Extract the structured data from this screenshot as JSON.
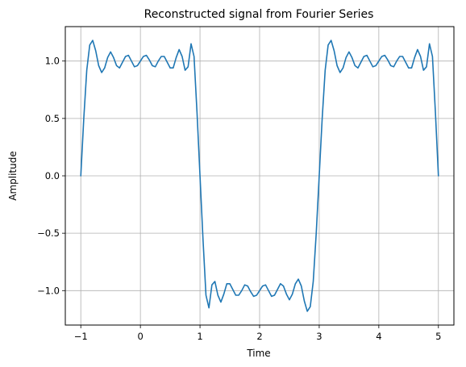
{
  "chart_data": {
    "type": "line",
    "title": "Reconstructed signal from Fourier Series",
    "xlabel": "Time",
    "ylabel": "Amplitude",
    "xlim": [
      -1.26,
      5.26
    ],
    "ylim": [
      -1.3,
      1.3
    ],
    "xticks": [
      -1,
      0,
      1,
      2,
      3,
      4,
      5
    ],
    "xtick_labels": [
      "−1",
      "0",
      "1",
      "2",
      "3",
      "4",
      "5"
    ],
    "yticks": [
      -1.0,
      -0.5,
      0.0,
      0.5,
      1.0
    ],
    "ytick_labels": [
      "−1.0",
      "−0.5",
      "0.0",
      "0.5",
      "1.0"
    ],
    "grid": true,
    "legend": "none",
    "series": [
      {
        "color": "#1f77b4",
        "x": [
          -1.0,
          -0.95,
          -0.9,
          -0.85,
          -0.8,
          -0.75,
          -0.7,
          -0.65,
          -0.6,
          -0.55,
          -0.5,
          -0.45,
          -0.4,
          -0.35,
          -0.3,
          -0.25,
          -0.2,
          -0.15,
          -0.1,
          -0.05,
          0.0,
          0.05,
          0.1,
          0.15,
          0.2,
          0.25,
          0.3,
          0.35,
          0.4,
          0.45,
          0.5,
          0.55,
          0.6,
          0.65,
          0.7,
          0.75,
          0.8,
          0.85,
          0.9,
          0.95,
          1.0,
          1.05,
          1.1,
          1.15,
          1.2,
          1.25,
          1.3,
          1.35,
          1.4,
          1.45,
          1.5,
          1.55,
          1.6,
          1.65,
          1.7,
          1.75,
          1.8,
          1.85,
          1.9,
          1.95,
          2.0,
          2.05,
          2.1,
          2.15,
          2.2,
          2.25,
          2.3,
          2.35,
          2.4,
          2.45,
          2.5,
          2.55,
          2.6,
          2.65,
          2.7,
          2.75,
          2.8,
          2.85,
          2.9,
          2.95,
          3.0,
          3.05,
          3.1,
          3.15,
          3.2,
          3.25,
          3.3,
          3.35,
          3.4,
          3.45,
          3.5,
          3.55,
          3.6,
          3.65,
          3.7,
          3.75,
          3.8,
          3.85,
          3.9,
          3.95,
          4.0,
          4.05,
          4.1,
          4.15,
          4.2,
          4.25,
          4.3,
          4.35,
          4.4,
          4.45,
          4.5,
          4.55,
          4.6,
          4.65,
          4.7,
          4.75,
          4.8,
          4.85,
          4.9,
          4.95,
          5.0
        ],
        "y": [
          0.0,
          0.5,
          0.92,
          1.14,
          1.18,
          1.09,
          0.96,
          0.9,
          0.94,
          1.03,
          1.08,
          1.03,
          0.96,
          0.94,
          0.99,
          1.04,
          1.05,
          1.0,
          0.95,
          0.96,
          1.0,
          1.04,
          1.05,
          1.01,
          0.96,
          0.95,
          1.0,
          1.04,
          1.04,
          0.99,
          0.94,
          0.94,
          1.03,
          1.1,
          1.04,
          0.92,
          0.95,
          1.15,
          1.04,
          0.55,
          0.0,
          -0.55,
          -1.04,
          -1.15,
          -0.95,
          -0.92,
          -1.04,
          -1.1,
          -1.03,
          -0.94,
          -0.94,
          -0.99,
          -1.04,
          -1.04,
          -1.0,
          -0.95,
          -0.96,
          -1.01,
          -1.05,
          -1.04,
          -1.0,
          -0.96,
          -0.95,
          -1.0,
          -1.05,
          -1.04,
          -0.99,
          -0.94,
          -0.96,
          -1.03,
          -1.08,
          -1.03,
          -0.94,
          -0.9,
          -0.96,
          -1.09,
          -1.18,
          -1.14,
          -0.92,
          -0.5,
          0.0,
          0.5,
          0.92,
          1.14,
          1.18,
          1.09,
          0.96,
          0.9,
          0.94,
          1.03,
          1.08,
          1.03,
          0.96,
          0.94,
          0.99,
          1.04,
          1.05,
          1.0,
          0.95,
          0.96,
          1.0,
          1.04,
          1.05,
          1.01,
          0.96,
          0.95,
          1.0,
          1.04,
          1.04,
          0.99,
          0.94,
          0.94,
          1.03,
          1.1,
          1.04,
          0.92,
          0.95,
          1.15,
          1.04,
          0.55,
          0.0
        ]
      }
    ]
  }
}
